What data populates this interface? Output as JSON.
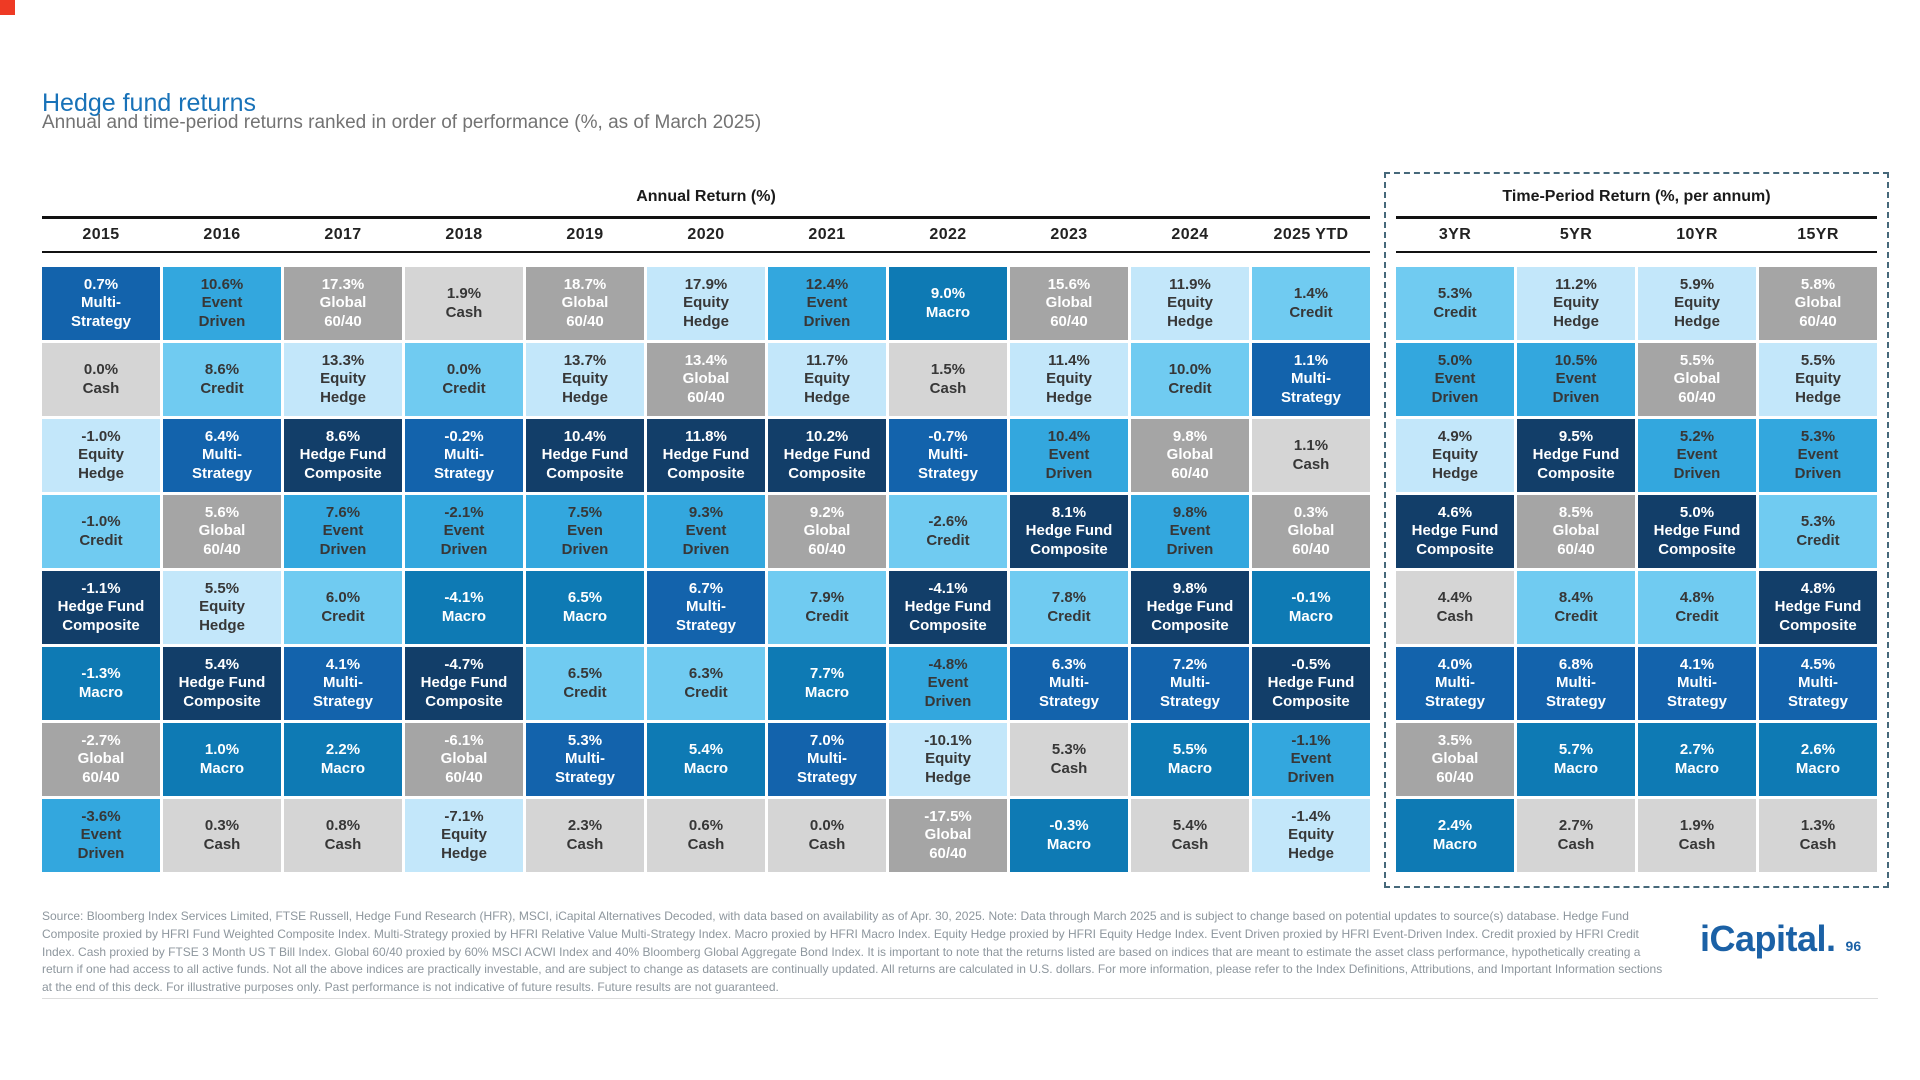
{
  "page": {
    "title": "Hedge fund returns",
    "subtitle": "Annual and time-period returns ranked in order of performance (%, as of March 2025)",
    "footer": "Source: Bloomberg Index Services Limited, FTSE Russell, Hedge Fund Research (HFR), MSCI, iCapital Alternatives Decoded, with data based on availability as of Apr. 30, 2025. Note: Data through March 2025 and is subject to change based on potential updates to source(s) database. Hedge Fund Composite proxied by HFRI Fund Weighted Composite Index. Multi-Strategy proxied by HFRI Relative Value Multi-Strategy Index. Macro proxied by HFRI Macro Index. Equity Hedge proxied by HFRI Equity Hedge Index. Event Driven proxied by HFRI Event-Driven Index. Credit proxied by HFRI Credit Index. Cash proxied by FTSE 3 Month US T Bill Index. Global 60/40 proxied by 60% MSCI ACWI Index and 40% Bloomberg Global Aggregate Bond Index. It is important to note that the returns listed are based on indices that are meant to estimate the asset class performance, hypothetically creating a return if one had access to all active funds. Not all the above indices are practically investable, and are subject to change as datasets are continually updated. All returns are calculated in U.S. dollars. For more information, please refer to the Index Definitions, Attributions, and Important Information sections at the end of this deck. For illustrative purposes only. Past performance is not indicative of future results. Future results are not guaranteed.",
    "logo_text": "iCapital.",
    "page_number": "96"
  },
  "chart_data": {
    "type": "table",
    "title": "Hedge fund returns",
    "subtitle": "Annual and time-period returns ranked in order of performance (%, as of March 2025)",
    "strategy_styles": {
      "Multi-Strategy": {
        "bg": "#1363ac",
        "fg": "#ffffff"
      },
      "Hedge Fund Composite": {
        "bg": "#123e69",
        "fg": "#ffffff"
      },
      "Macro": {
        "bg": "#0e7ab4",
        "fg": "#ffffff"
      },
      "Event Driven": {
        "bg": "#33a7de",
        "fg": "#373737"
      },
      "Credit": {
        "bg": "#70cbf1",
        "fg": "#373737"
      },
      "Equity Hedge": {
        "bg": "#c3e7fa",
        "fg": "#373737"
      },
      "Global 60/40": {
        "bg": "#a5a5a5",
        "fg": "#ffffff"
      },
      "Cash": {
        "bg": "#d5d5d5",
        "fg": "#373737"
      }
    },
    "strategy_labels": {
      "Multi-Strategy": "Multi-\nStrategy",
      "Hedge Fund Composite": "Hedge Fund\nComposite",
      "Macro": "Macro",
      "Event Driven": "Event\nDriven",
      "Credit": "Credit",
      "Equity Hedge": "Equity\nHedge",
      "Global 60/40": "Global\n60/40",
      "Cash": "Cash"
    },
    "sections": [
      {
        "id": "annual",
        "title": "Annual Return (%)",
        "columns": [
          {
            "label": "2015",
            "cells": [
              {
                "v": "0.7%",
                "s": "Multi-Strategy"
              },
              {
                "v": "0.0%",
                "s": "Cash"
              },
              {
                "v": "-1.0%",
                "s": "Equity Hedge"
              },
              {
                "v": "-1.0%",
                "s": "Credit"
              },
              {
                "v": "-1.1%",
                "s": "Hedge Fund Composite"
              },
              {
                "v": "-1.3%",
                "s": "Macro"
              },
              {
                "v": "-2.7%",
                "s": "Global 60/40"
              },
              {
                "v": "-3.6%",
                "s": "Event Driven"
              }
            ]
          },
          {
            "label": "2016",
            "cells": [
              {
                "v": "10.6%",
                "s": "Event Driven"
              },
              {
                "v": "8.6%",
                "s": "Credit"
              },
              {
                "v": "6.4%",
                "s": "Multi-Strategy"
              },
              {
                "v": "5.6%",
                "s": "Global 60/40"
              },
              {
                "v": "5.5%",
                "s": "Equity Hedge"
              },
              {
                "v": "5.4%",
                "s": "Hedge Fund Composite"
              },
              {
                "v": "1.0%",
                "s": "Macro"
              },
              {
                "v": "0.3%",
                "s": "Cash"
              }
            ]
          },
          {
            "label": "2017",
            "cells": [
              {
                "v": "17.3%",
                "s": "Global 60/40"
              },
              {
                "v": "13.3%",
                "s": "Equity Hedge"
              },
              {
                "v": "8.6%",
                "s": "Hedge Fund Composite"
              },
              {
                "v": "7.6%",
                "s": "Event Driven"
              },
              {
                "v": "6.0%",
                "s": "Credit"
              },
              {
                "v": "4.1%",
                "s": "Multi-Strategy"
              },
              {
                "v": "2.2%",
                "s": "Macro"
              },
              {
                "v": "0.8%",
                "s": "Cash"
              }
            ]
          },
          {
            "label": "2018",
            "cells": [
              {
                "v": "1.9%",
                "s": "Cash"
              },
              {
                "v": "0.0%",
                "s": "Credit"
              },
              {
                "v": "-0.2%",
                "s": "Multi-Strategy"
              },
              {
                "v": "-2.1%",
                "s": "Event Driven"
              },
              {
                "v": "-4.1%",
                "s": "Macro"
              },
              {
                "v": "-4.7%",
                "s": "Hedge Fund Composite"
              },
              {
                "v": "-6.1%",
                "s": "Global 60/40"
              },
              {
                "v": "-7.1%",
                "s": "Equity Hedge"
              }
            ]
          },
          {
            "label": "2019",
            "cells": [
              {
                "v": "18.7%",
                "s": "Global 60/40"
              },
              {
                "v": "13.7%",
                "s": "Equity Hedge"
              },
              {
                "v": "10.4%",
                "s": "Hedge Fund Composite"
              },
              {
                "v": "7.5%",
                "s": "Event Driven",
                "label": "Even\nDriven"
              },
              {
                "v": "6.5%",
                "s": "Macro"
              },
              {
                "v": "6.5%",
                "s": "Credit"
              },
              {
                "v": "5.3%",
                "s": "Multi-Strategy"
              },
              {
                "v": "2.3%",
                "s": "Cash"
              }
            ]
          },
          {
            "label": "2020",
            "cells": [
              {
                "v": "17.9%",
                "s": "Equity Hedge"
              },
              {
                "v": "13.4%",
                "s": "Global 60/40"
              },
              {
                "v": "11.8%",
                "s": "Hedge Fund Composite"
              },
              {
                "v": "9.3%",
                "s": "Event Driven"
              },
              {
                "v": "6.7%",
                "s": "Multi-Strategy"
              },
              {
                "v": "6.3%",
                "s": "Credit"
              },
              {
                "v": "5.4%",
                "s": "Macro"
              },
              {
                "v": "0.6%",
                "s": "Cash"
              }
            ]
          },
          {
            "label": "2021",
            "cells": [
              {
                "v": "12.4%",
                "s": "Event Driven"
              },
              {
                "v": "11.7%",
                "s": "Equity Hedge"
              },
              {
                "v": "10.2%",
                "s": "Hedge Fund Composite"
              },
              {
                "v": "9.2%",
                "s": "Global 60/40"
              },
              {
                "v": "7.9%",
                "s": "Credit"
              },
              {
                "v": "7.7%",
                "s": "Macro"
              },
              {
                "v": "7.0%",
                "s": "Multi-Strategy"
              },
              {
                "v": "0.0%",
                "s": "Cash"
              }
            ]
          },
          {
            "label": "2022",
            "cells": [
              {
                "v": "9.0%",
                "s": "Macro"
              },
              {
                "v": "1.5%",
                "s": "Cash"
              },
              {
                "v": "-0.7%",
                "s": "Multi-Strategy"
              },
              {
                "v": "-2.6%",
                "s": "Credit"
              },
              {
                "v": "-4.1%",
                "s": "Hedge Fund Composite"
              },
              {
                "v": "-4.8%",
                "s": "Event Driven"
              },
              {
                "v": "-10.1%",
                "s": "Equity Hedge"
              },
              {
                "v": "-17.5%",
                "s": "Global 60/40"
              }
            ]
          },
          {
            "label": "2023",
            "cells": [
              {
                "v": "15.6%",
                "s": "Global 60/40"
              },
              {
                "v": "11.4%",
                "s": "Equity Hedge"
              },
              {
                "v": "10.4%",
                "s": "Event Driven"
              },
              {
                "v": "8.1%",
                "s": "Hedge Fund Composite"
              },
              {
                "v": "7.8%",
                "s": "Credit"
              },
              {
                "v": "6.3%",
                "s": "Multi-Strategy"
              },
              {
                "v": "5.3%",
                "s": "Cash"
              },
              {
                "v": "-0.3%",
                "s": "Macro"
              }
            ]
          },
          {
            "label": "2024",
            "cells": [
              {
                "v": "11.9%",
                "s": "Equity Hedge"
              },
              {
                "v": "10.0%",
                "s": "Credit"
              },
              {
                "v": "9.8%",
                "s": "Global 60/40"
              },
              {
                "v": "9.8%",
                "s": "Event Driven"
              },
              {
                "v": "9.8%",
                "s": "Hedge Fund Composite"
              },
              {
                "v": "7.2%",
                "s": "Multi-Strategy"
              },
              {
                "v": "5.5%",
                "s": "Macro"
              },
              {
                "v": "5.4%",
                "s": "Cash"
              }
            ]
          },
          {
            "label": "2025 YTD",
            "cells": [
              {
                "v": "1.4%",
                "s": "Credit"
              },
              {
                "v": "1.1%",
                "s": "Multi-Strategy"
              },
              {
                "v": "1.1%",
                "s": "Cash"
              },
              {
                "v": "0.3%",
                "s": "Global 60/40"
              },
              {
                "v": "-0.1%",
                "s": "Macro"
              },
              {
                "v": "-0.5%",
                "s": "Hedge Fund Composite"
              },
              {
                "v": "-1.1%",
                "s": "Event Driven"
              },
              {
                "v": "-1.4%",
                "s": "Equity Hedge"
              }
            ]
          }
        ]
      },
      {
        "id": "time-period",
        "title": "Time-Period Return (%, per annum)",
        "columns": [
          {
            "label": "3YR",
            "cells": [
              {
                "v": "5.3%",
                "s": "Credit"
              },
              {
                "v": "5.0%",
                "s": "Event Driven"
              },
              {
                "v": "4.9%",
                "s": "Equity Hedge"
              },
              {
                "v": "4.6%",
                "s": "Hedge Fund Composite"
              },
              {
                "v": "4.4%",
                "s": "Cash"
              },
              {
                "v": "4.0%",
                "s": "Multi-Strategy"
              },
              {
                "v": "3.5%",
                "s": "Global 60/40"
              },
              {
                "v": "2.4%",
                "s": "Macro"
              }
            ]
          },
          {
            "label": "5YR",
            "cells": [
              {
                "v": "11.2%",
                "s": "Equity Hedge"
              },
              {
                "v": "10.5%",
                "s": "Event Driven"
              },
              {
                "v": "9.5%",
                "s": "Hedge Fund Composite"
              },
              {
                "v": "8.5%",
                "s": "Global 60/40"
              },
              {
                "v": "8.4%",
                "s": "Credit"
              },
              {
                "v": "6.8%",
                "s": "Multi-Strategy"
              },
              {
                "v": "5.7%",
                "s": "Macro"
              },
              {
                "v": "2.7%",
                "s": "Cash"
              }
            ]
          },
          {
            "label": "10YR",
            "cells": [
              {
                "v": "5.9%",
                "s": "Equity Hedge"
              },
              {
                "v": "5.5%",
                "s": "Global 60/40"
              },
              {
                "v": "5.2%",
                "s": "Event Driven"
              },
              {
                "v": "5.0%",
                "s": "Hedge Fund Composite"
              },
              {
                "v": "4.8%",
                "s": "Credit"
              },
              {
                "v": "4.1%",
                "s": "Multi-Strategy"
              },
              {
                "v": "2.7%",
                "s": "Macro"
              },
              {
                "v": "1.9%",
                "s": "Cash"
              }
            ]
          },
          {
            "label": "15YR",
            "cells": [
              {
                "v": "5.8%",
                "s": "Global 60/40"
              },
              {
                "v": "5.5%",
                "s": "Equity Hedge"
              },
              {
                "v": "5.3%",
                "s": "Event Driven"
              },
              {
                "v": "5.3%",
                "s": "Credit"
              },
              {
                "v": "4.8%",
                "s": "Hedge Fund Composite"
              },
              {
                "v": "4.5%",
                "s": "Multi-Strategy"
              },
              {
                "v": "2.6%",
                "s": "Macro"
              },
              {
                "v": "1.3%",
                "s": "Cash"
              }
            ]
          }
        ]
      }
    ]
  }
}
